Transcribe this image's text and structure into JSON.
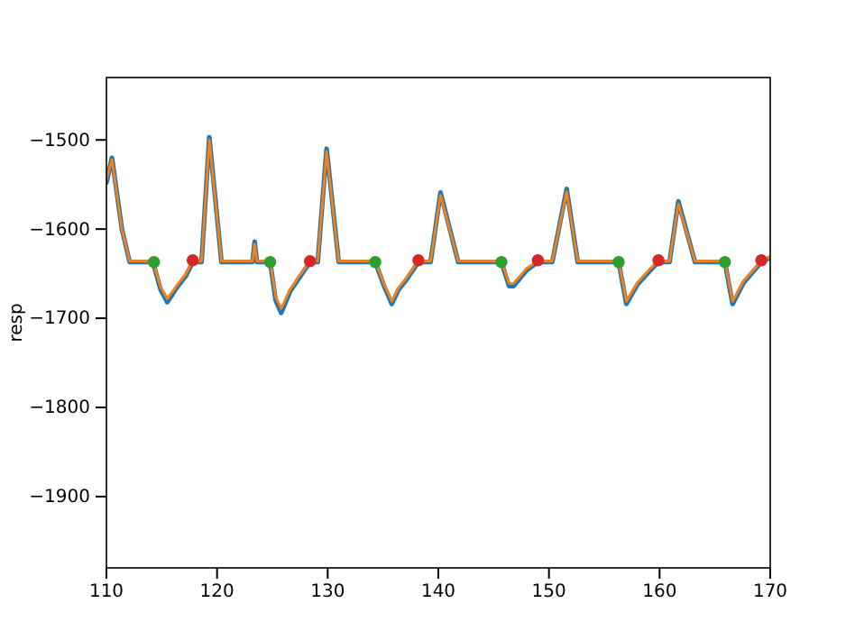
{
  "chart_data": {
    "type": "line",
    "ylabel": "resp",
    "xlim": [
      110,
      170
    ],
    "ylim": [
      -1980,
      -1430
    ],
    "xticks": [
      110,
      120,
      130,
      140,
      150,
      160,
      170
    ],
    "yticks": [
      -1500,
      -1600,
      -1700,
      -1800,
      -1900
    ],
    "grid": false,
    "series": [
      {
        "color": "#1f77b4",
        "x": [
          110,
          110.5,
          111.4,
          112.1,
          114.2,
          114.9,
          115.5,
          116.4,
          117.2,
          117.8,
          118.6,
          119.3,
          120.4,
          123.2,
          123.4,
          123.6,
          124.8,
          125.3,
          125.8,
          126.6,
          127.3,
          128.4,
          129.1,
          129.9,
          131.0,
          134.3,
          135.1,
          135.8,
          136.4,
          137.1,
          138.2,
          139.3,
          140.2,
          141.8,
          145.7,
          146.4,
          146.8,
          148,
          149,
          150.3,
          151.6,
          152.6,
          156.3,
          157,
          158,
          159.1,
          159.9,
          160.9,
          161.7,
          163.2,
          165.9,
          166.6,
          167.6,
          169.2,
          170
        ],
        "values": [
          -1548,
          -1520,
          -1600,
          -1637,
          -1637,
          -1668,
          -1682,
          -1665,
          -1652,
          -1637,
          -1637,
          -1497,
          -1637,
          -1637,
          -1614,
          -1637,
          -1637,
          -1680,
          -1694,
          -1670,
          -1657,
          -1637,
          -1637,
          -1510,
          -1637,
          -1637,
          -1664,
          -1684,
          -1668,
          -1657,
          -1637,
          -1637,
          -1559,
          -1637,
          -1637,
          -1664,
          -1664,
          -1646,
          -1637,
          -1637,
          -1555,
          -1637,
          -1637,
          -1684,
          -1662,
          -1647,
          -1637,
          -1637,
          -1569,
          -1637,
          -1637,
          -1684,
          -1660,
          -1637,
          -1632
        ]
      },
      {
        "color": "#ff7f0e",
        "x": [
          110,
          110.5,
          111.4,
          112.1,
          114.2,
          114.9,
          115.5,
          116.4,
          117.2,
          117.8,
          118.6,
          119.3,
          120.4,
          123.2,
          123.4,
          123.6,
          124.8,
          125.3,
          125.8,
          126.6,
          127.3,
          128.4,
          129.1,
          129.9,
          131.0,
          134.3,
          135.1,
          135.8,
          136.4,
          137.1,
          138.2,
          139.3,
          140.2,
          141.8,
          145.7,
          146.4,
          146.8,
          148,
          149,
          150.3,
          151.6,
          152.6,
          156.3,
          157,
          158,
          159.1,
          159.9,
          160.9,
          161.7,
          163.2,
          165.9,
          166.6,
          167.6,
          169.2,
          170
        ],
        "values": [
          -1545,
          -1522,
          -1600,
          -1636,
          -1636,
          -1665,
          -1678,
          -1663,
          -1650,
          -1636,
          -1636,
          -1500,
          -1636,
          -1636,
          -1617,
          -1636,
          -1636,
          -1676,
          -1689,
          -1668,
          -1655,
          -1636,
          -1636,
          -1513,
          -1636,
          -1636,
          -1662,
          -1681,
          -1666,
          -1655,
          -1636,
          -1636,
          -1562,
          -1636,
          -1636,
          -1661,
          -1661,
          -1644,
          -1636,
          -1636,
          -1558,
          -1636,
          -1636,
          -1681,
          -1660,
          -1645,
          -1636,
          -1636,
          -1572,
          -1636,
          -1636,
          -1681,
          -1658,
          -1636,
          -1631
        ]
      },
      {
        "type": "scatter",
        "marker": "circle",
        "color": "#2ca02c",
        "x": [
          114.3,
          124.8,
          134.3,
          145.7,
          156.3,
          165.9
        ],
        "values": [
          -1637,
          -1637,
          -1637,
          -1637,
          -1637,
          -1637
        ]
      },
      {
        "type": "scatter",
        "marker": "circle",
        "color": "#d62728",
        "x": [
          117.8,
          128.4,
          138.2,
          149.0,
          159.9,
          169.2
        ],
        "values": [
          -1635,
          -1636,
          -1635,
          -1635,
          -1635,
          -1635
        ]
      }
    ]
  }
}
